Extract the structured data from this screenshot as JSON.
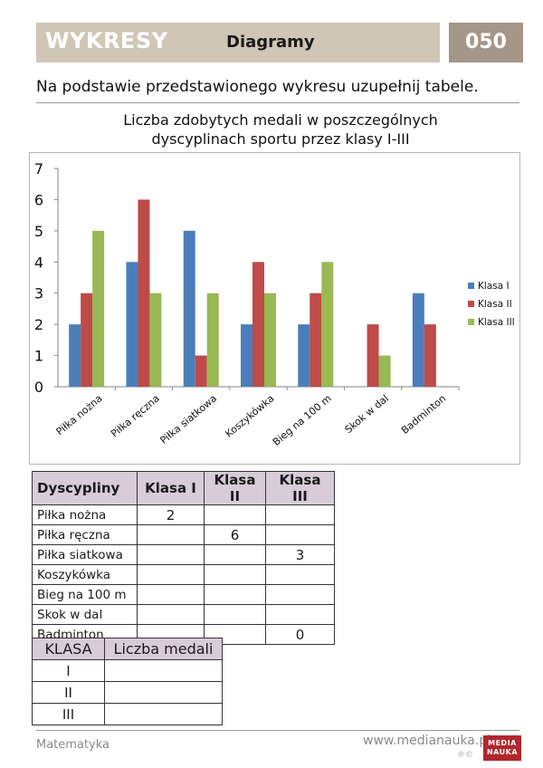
{
  "header": {
    "title": "WYKRESY",
    "subtitle": "Diagramy",
    "page_number": "050",
    "band_color": "#cfc6b5",
    "num_color": "#a5968a"
  },
  "instruction": "Na podstawie przedstawionego wykresu uzupełnij tabele.",
  "chart_data": {
    "type": "bar",
    "title_line1": "Liczba zdobytych medali w poszczególnych",
    "title_line2": "dyscyplinach sportu przez klasy I-III",
    "categories": [
      "Piłka nożna",
      "Piłka ręczna",
      "Piłka siatkowa",
      "Koszykówka",
      "Bieg na 100 m",
      "Skok w dal",
      "Badminton"
    ],
    "series": [
      {
        "name": "Klasa I",
        "color": "#4a7ebb",
        "values": [
          2,
          4,
          5,
          2,
          2,
          0,
          3
        ]
      },
      {
        "name": "Klasa II",
        "color": "#be4b48",
        "values": [
          3,
          6,
          1,
          4,
          3,
          2,
          2
        ]
      },
      {
        "name": "Klasa III",
        "color": "#98b954",
        "values": [
          5,
          3,
          3,
          3,
          4,
          1,
          0
        ]
      }
    ],
    "ylim": [
      0,
      7
    ],
    "yticks": [
      "0",
      "1",
      "2",
      "3",
      "4",
      "5",
      "6",
      "7"
    ],
    "legend_position": "right"
  },
  "table1": {
    "headers": [
      "Dyscypliny",
      "Klasa I",
      "Klasa II",
      "Klasa III"
    ],
    "rows": [
      {
        "label": "Piłka nożna",
        "k1": "2",
        "k2": "",
        "k3": ""
      },
      {
        "label": "Piłka ręczna",
        "k1": "",
        "k2": "6",
        "k3": ""
      },
      {
        "label": "Piłka siatkowa",
        "k1": "",
        "k2": "",
        "k3": "3"
      },
      {
        "label": "Koszykówka",
        "k1": "",
        "k2": "",
        "k3": ""
      },
      {
        "label": "Bieg na 100 m",
        "k1": "",
        "k2": "",
        "k3": ""
      },
      {
        "label": "Skok w dal",
        "k1": "",
        "k2": "",
        "k3": ""
      },
      {
        "label": "Badminton",
        "k1": "",
        "k2": "",
        "k3": "0"
      }
    ],
    "header_bg": "#d8ccd9"
  },
  "table2": {
    "headers": [
      "KLASA",
      "Liczba medali"
    ],
    "rows": [
      {
        "label": "I",
        "value": ""
      },
      {
        "label": "II",
        "value": ""
      },
      {
        "label": "III",
        "value": ""
      }
    ]
  },
  "footer": {
    "subject": "Matematyka",
    "url": "www.medianauka.pl",
    "copyright": "®©",
    "logo_line1": "MEDIA",
    "logo_line2": "NAUKA"
  }
}
